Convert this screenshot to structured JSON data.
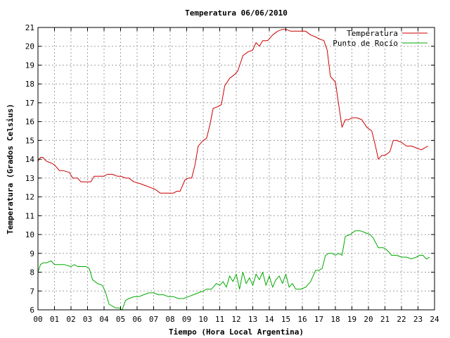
{
  "chart_data": {
    "type": "line",
    "title": "Temperatura 06/06/2010",
    "xlabel": "Tiempo (Hora Local Argentina)",
    "ylabel": "Temperatura (Grados Celsius)",
    "xlim": [
      0,
      24
    ],
    "ylim": [
      6,
      21
    ],
    "x_ticks": [
      "00",
      "01",
      "02",
      "03",
      "04",
      "05",
      "06",
      "07",
      "08",
      "09",
      "10",
      "11",
      "12",
      "13",
      "14",
      "15",
      "16",
      "17",
      "18",
      "19",
      "20",
      "21",
      "22",
      "23",
      "24"
    ],
    "y_ticks": [
      "6",
      "7",
      "8",
      "9",
      "10",
      "11",
      "12",
      "13",
      "14",
      "15",
      "16",
      "17",
      "18",
      "19",
      "20",
      "21"
    ],
    "grid": true,
    "legend_position": "top-right",
    "series": [
      {
        "name": "Temperatura",
        "color": "#cc0000",
        "x": [
          0,
          0.15,
          0.3,
          0.5,
          0.8,
          1.0,
          1.3,
          1.5,
          1.9,
          2.1,
          2.4,
          2.6,
          3.0,
          3.2,
          3.4,
          3.7,
          4.0,
          4.2,
          4.5,
          4.8,
          5.0,
          5.3,
          5.5,
          5.8,
          6.2,
          6.5,
          6.8,
          7.1,
          7.4,
          7.7,
          8.0,
          8.2,
          8.4,
          8.6,
          8.9,
          9.1,
          9.3,
          9.5,
          9.7,
          10.0,
          10.2,
          10.4,
          10.6,
          10.9,
          11.1,
          11.3,
          11.6,
          11.9,
          12.1,
          12.4,
          12.7,
          13.0,
          13.2,
          13.4,
          13.6,
          13.9,
          14.2,
          14.5,
          14.8,
          15.0,
          15.3,
          15.6,
          15.9,
          16.2,
          16.5,
          16.8,
          17.0,
          17.3,
          17.5,
          17.7,
          18.0,
          18.2,
          18.4,
          18.6,
          18.8,
          19.0,
          19.3,
          19.6,
          19.9,
          20.2,
          20.4,
          20.6,
          20.8,
          21.0,
          21.3,
          21.5,
          21.7,
          22.0,
          22.3,
          22.6,
          22.9,
          23.2,
          23.4,
          23.6
        ],
        "y": [
          13.9,
          14.1,
          14.1,
          13.9,
          13.8,
          13.7,
          13.4,
          13.4,
          13.3,
          13.0,
          13.0,
          12.8,
          12.8,
          12.8,
          13.1,
          13.1,
          13.1,
          13.2,
          13.2,
          13.1,
          13.1,
          13.0,
          13.0,
          12.8,
          12.7,
          12.6,
          12.5,
          12.4,
          12.2,
          12.2,
          12.2,
          12.2,
          12.3,
          12.3,
          12.9,
          13.0,
          13.0,
          13.7,
          14.7,
          15.0,
          15.1,
          15.8,
          16.7,
          16.8,
          16.9,
          17.9,
          18.3,
          18.5,
          18.7,
          19.5,
          19.7,
          19.8,
          20.2,
          20.0,
          20.3,
          20.3,
          20.6,
          20.8,
          20.9,
          20.9,
          20.8,
          20.8,
          20.8,
          20.8,
          20.6,
          20.5,
          20.4,
          20.3,
          19.8,
          18.4,
          18.1,
          16.9,
          15.7,
          16.1,
          16.1,
          16.2,
          16.2,
          16.1,
          15.7,
          15.5,
          14.8,
          14.0,
          14.2,
          14.2,
          14.4,
          15.0,
          15.0,
          14.9,
          14.7,
          14.7,
          14.6,
          14.5,
          14.6,
          14.7
        ]
      },
      {
        "name": "Punto de Rocío",
        "color": "#00aa00",
        "x": [
          0,
          0.15,
          0.3,
          0.5,
          0.8,
          1.0,
          1.3,
          1.6,
          2.0,
          2.2,
          2.4,
          2.6,
          2.9,
          3.1,
          3.3,
          3.6,
          3.9,
          4.1,
          4.3,
          4.5,
          4.7,
          4.9,
          5.1,
          5.3,
          5.5,
          5.8,
          6.1,
          6.4,
          6.7,
          7.0,
          7.3,
          7.6,
          7.9,
          8.2,
          8.5,
          8.8,
          9.1,
          9.4,
          9.7,
          10.0,
          10.2,
          10.5,
          10.8,
          11.0,
          11.2,
          11.4,
          11.6,
          11.8,
          12.0,
          12.2,
          12.4,
          12.6,
          12.8,
          13.0,
          13.2,
          13.4,
          13.6,
          13.8,
          14.0,
          14.2,
          14.4,
          14.6,
          14.8,
          15.0,
          15.2,
          15.4,
          15.6,
          15.9,
          16.2,
          16.5,
          16.8,
          17.0,
          17.2,
          17.4,
          17.6,
          17.8,
          18.0,
          18.2,
          18.4,
          18.6,
          18.9,
          19.2,
          19.5,
          19.8,
          20.1,
          20.3,
          20.6,
          20.9,
          21.1,
          21.4,
          21.7,
          22.0,
          22.3,
          22.6,
          22.9,
          23.1,
          23.3,
          23.5,
          23.7
        ],
        "y": [
          8.0,
          8.4,
          8.5,
          8.5,
          8.6,
          8.4,
          8.4,
          8.4,
          8.3,
          8.4,
          8.3,
          8.3,
          8.3,
          8.2,
          7.6,
          7.4,
          7.3,
          6.9,
          6.3,
          6.2,
          6.1,
          6.1,
          6.0,
          6.5,
          6.6,
          6.7,
          6.7,
          6.8,
          6.9,
          6.9,
          6.8,
          6.8,
          6.7,
          6.7,
          6.6,
          6.6,
          6.7,
          6.8,
          6.9,
          7.0,
          7.1,
          7.1,
          7.4,
          7.3,
          7.5,
          7.2,
          7.8,
          7.5,
          7.9,
          7.1,
          8.0,
          7.4,
          7.7,
          7.3,
          7.9,
          7.6,
          8.0,
          7.3,
          7.8,
          7.2,
          7.6,
          7.8,
          7.4,
          7.9,
          7.2,
          7.4,
          7.1,
          7.1,
          7.2,
          7.5,
          8.1,
          8.1,
          8.2,
          8.9,
          9.0,
          9.0,
          8.9,
          9.0,
          8.9,
          9.9,
          10.0,
          10.2,
          10.2,
          10.1,
          10.0,
          9.8,
          9.3,
          9.3,
          9.2,
          8.9,
          8.9,
          8.8,
          8.8,
          8.7,
          8.8,
          8.9,
          8.9,
          8.7,
          8.8
        ]
      }
    ]
  }
}
